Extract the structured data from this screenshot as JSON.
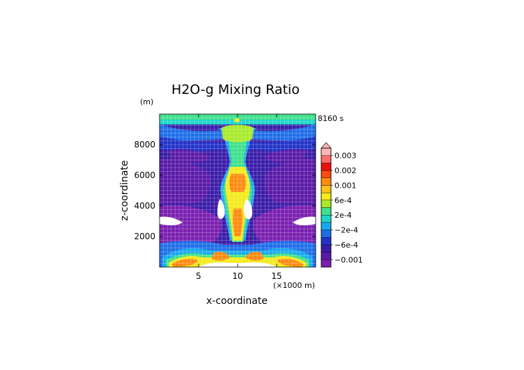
{
  "chart_data": {
    "type": "heatmap",
    "title": "H2O-g Mixing Ratio",
    "xlabel": "x-coordinate",
    "ylabel": "z-coordinate",
    "x_unit": "(×1000 m)",
    "y_unit": "(m)",
    "time_label": "8160 s",
    "xlim": [
      0,
      20
    ],
    "ylim": [
      0,
      10000
    ],
    "xticks": [
      5,
      10,
      15
    ],
    "yticks": [
      2000,
      4000,
      6000,
      8000
    ],
    "grid": true,
    "colorbar": {
      "tick_labels": [
        "0.003",
        "0.002",
        "0.001",
        "6e-4",
        "2e-4",
        "−2e-4",
        "−6e-4",
        "−0.001"
      ],
      "levels": [
        "-0.001",
        "-8e-4",
        "-6e-4",
        "-4e-4",
        "-2e-4",
        "0",
        "2e-4",
        "4e-4",
        "6e-4",
        "8e-4",
        "0.001",
        "0.0015",
        "0.002",
        "0.0025",
        "0.003"
      ],
      "colors": [
        "#7a1fb0",
        "#5a1aa8",
        "#3a1ca8",
        "#2233c8",
        "#1f6ee8",
        "#18a8ef",
        "#1bd6c8",
        "#3fe08a",
        "#a8ea2a",
        "#f4ea1c",
        "#ffc21a",
        "#ff8a10",
        "#ff4a10",
        "#ee1010",
        "#ff6a6a",
        "#ffb4b4"
      ]
    }
  }
}
